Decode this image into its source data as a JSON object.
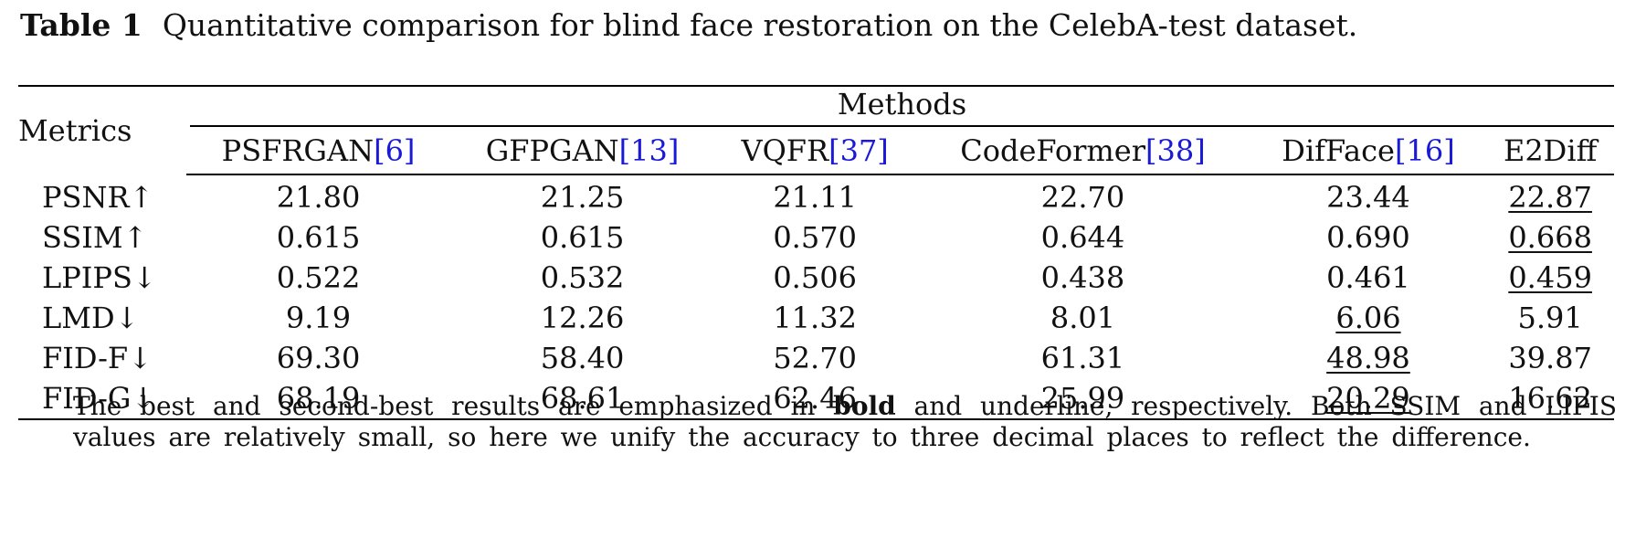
{
  "caption": {
    "label": "Table 1",
    "text": "Quantitative comparison for blind face restoration on the CelebA-test dataset."
  },
  "table": {
    "metrics_header": "Metrics",
    "methods_header": "Methods",
    "methods": [
      {
        "name": "PSFRGAN",
        "cite": "[6]"
      },
      {
        "name": "GFPGAN",
        "cite": "[13]"
      },
      {
        "name": "VQFR",
        "cite": "[37]"
      },
      {
        "name": "CodeFormer",
        "cite": "[38]"
      },
      {
        "name": "DifFace",
        "cite": "[16]"
      },
      {
        "name": "E2Diff",
        "cite": ""
      }
    ],
    "rows": [
      {
        "metric": "PSNR↑",
        "values": [
          "21.80",
          "21.25",
          "21.11",
          "22.70",
          "23.44",
          "22.87"
        ]
      },
      {
        "metric": "SSIM↑",
        "values": [
          "0.615",
          "0.615",
          "0.570",
          "0.644",
          "0.690",
          "0.668"
        ]
      },
      {
        "metric": "LPIPS↓",
        "values": [
          "0.522",
          "0.532",
          "0.506",
          "0.438",
          "0.461",
          "0.459"
        ]
      },
      {
        "metric": "LMD↓",
        "values": [
          "9.19",
          "12.26",
          "11.32",
          "8.01",
          "6.06",
          "5.91"
        ]
      },
      {
        "metric": "FID-F↓",
        "values": [
          "69.30",
          "58.40",
          "52.70",
          "61.31",
          "48.98",
          "39.87"
        ]
      },
      {
        "metric": "FID-G↓",
        "values": [
          "68.19",
          "68.61",
          "62.46",
          "25.99",
          "20.29",
          "16.62"
        ]
      }
    ]
  },
  "note": {
    "part1": "The best and second-best results are emphasized in",
    "bold_word": "bold",
    "part2": "and",
    "underline_word": "underline",
    "part3": ", respectively. Both SSIM and LIPIS values are relatively small, so here we unify the accuracy to three decimal places to reflect the difference."
  }
}
